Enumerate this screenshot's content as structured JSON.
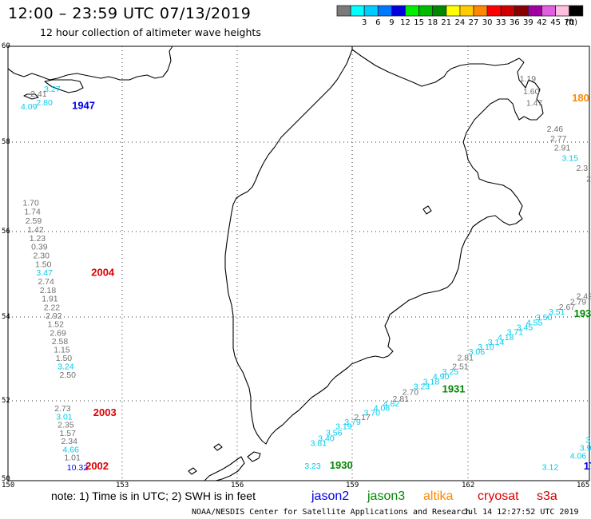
{
  "title": "12:00 – 23:59 UTC 07/13/2019",
  "subtitle": "12 hour collection of altimeter wave heights",
  "legend": {
    "unit": "(ft)",
    "cells": [
      {
        "label": "",
        "color": "#7a7a7a"
      },
      {
        "label": "3",
        "color": "#00ffff"
      },
      {
        "label": "6",
        "color": "#00ccff"
      },
      {
        "label": "9",
        "color": "#0077ff"
      },
      {
        "label": "12",
        "color": "#0000dd"
      },
      {
        "label": "15",
        "color": "#00ee00"
      },
      {
        "label": "18",
        "color": "#00bb00"
      },
      {
        "label": "21",
        "color": "#008800"
      },
      {
        "label": "24",
        "color": "#ffff00"
      },
      {
        "label": "27",
        "color": "#ffcc00"
      },
      {
        "label": "30",
        "color": "#ff8800"
      },
      {
        "label": "33",
        "color": "#ff0000"
      },
      {
        "label": "36",
        "color": "#cc0000"
      },
      {
        "label": "39",
        "color": "#880000"
      },
      {
        "label": "42",
        "color": "#a000a0"
      },
      {
        "label": "45",
        "color": "#e060e0"
      },
      {
        "label": "70",
        "color": "#ffc0e0"
      },
      {
        "label": "",
        "color": "#000000"
      }
    ]
  },
  "axes": {
    "lon_labels": [
      "150",
      "153",
      "156",
      "159",
      "162",
      "165"
    ],
    "lat_labels": [
      "60",
      "58",
      "56",
      "54",
      "52",
      "50"
    ]
  },
  "colors": {
    "gray": "#707070",
    "cyan": "#00ccee",
    "jason2": "#0000ee",
    "jason3": "#008800",
    "altika": "#ff8800",
    "cryosat": "#dd0000",
    "s3a": "#cc0000"
  },
  "observations": [
    {
      "lon": 150.93,
      "lat": 59.05,
      "value": "3.27",
      "color": "cyan"
    },
    {
      "lon": 150.58,
      "lat": 58.95,
      "value": "2.41",
      "color": "gray"
    },
    {
      "lon": 150.73,
      "lat": 58.77,
      "value": "2.80",
      "color": "cyan"
    },
    {
      "lon": 150.33,
      "lat": 58.68,
      "value": "4.09",
      "color": "cyan"
    },
    {
      "lon": 163.2,
      "lat": 59.27,
      "value": "1.19",
      "color": "gray"
    },
    {
      "lon": 163.29,
      "lat": 59.0,
      "value": "1.60",
      "color": "gray"
    },
    {
      "lon": 163.37,
      "lat": 58.76,
      "value": "1.47",
      "color": "gray"
    },
    {
      "lon": 163.9,
      "lat": 58.22,
      "value": "2.46",
      "color": "gray"
    },
    {
      "lon": 163.99,
      "lat": 58.02,
      "value": "2.77",
      "color": "gray"
    },
    {
      "lon": 164.09,
      "lat": 57.81,
      "value": "2.91",
      "color": "gray"
    },
    {
      "lon": 164.29,
      "lat": 57.58,
      "value": "3.15",
      "color": "cyan"
    },
    {
      "lon": 164.66,
      "lat": 57.36,
      "value": "2.3",
      "color": "gray"
    },
    {
      "lon": 164.92,
      "lat": 57.12,
      "value": "2.",
      "color": "gray"
    },
    {
      "lon": 150.38,
      "lat": 56.58,
      "value": "1.70",
      "color": "gray"
    },
    {
      "lon": 150.42,
      "lat": 56.38,
      "value": "1.74",
      "color": "gray"
    },
    {
      "lon": 150.45,
      "lat": 56.18,
      "value": "2.59",
      "color": "gray"
    },
    {
      "lon": 150.5,
      "lat": 55.98,
      "value": "1.42",
      "color": "gray"
    },
    {
      "lon": 150.55,
      "lat": 55.78,
      "value": "1.23",
      "color": "gray"
    },
    {
      "lon": 150.6,
      "lat": 55.58,
      "value": "0.39",
      "color": "gray"
    },
    {
      "lon": 150.65,
      "lat": 55.37,
      "value": "2.30",
      "color": "gray"
    },
    {
      "lon": 150.7,
      "lat": 55.17,
      "value": "1.50",
      "color": "gray"
    },
    {
      "lon": 150.73,
      "lat": 54.97,
      "value": "3.47",
      "color": "cyan"
    },
    {
      "lon": 150.77,
      "lat": 54.77,
      "value": "2.74",
      "color": "gray"
    },
    {
      "lon": 150.82,
      "lat": 54.56,
      "value": "2.18",
      "color": "gray"
    },
    {
      "lon": 150.87,
      "lat": 54.36,
      "value": "1.91",
      "color": "gray"
    },
    {
      "lon": 150.92,
      "lat": 54.16,
      "value": "2.22",
      "color": "gray"
    },
    {
      "lon": 150.97,
      "lat": 53.96,
      "value": "2.92",
      "color": "gray"
    },
    {
      "lon": 151.02,
      "lat": 53.76,
      "value": "1.52",
      "color": "gray"
    },
    {
      "lon": 151.08,
      "lat": 53.55,
      "value": "2.69",
      "color": "gray"
    },
    {
      "lon": 151.13,
      "lat": 53.35,
      "value": "2.58",
      "color": "gray"
    },
    {
      "lon": 151.18,
      "lat": 53.15,
      "value": "1.15",
      "color": "gray"
    },
    {
      "lon": 151.23,
      "lat": 52.95,
      "value": "1.50",
      "color": "gray"
    },
    {
      "lon": 151.28,
      "lat": 52.75,
      "value": "3.24",
      "color": "cyan"
    },
    {
      "lon": 151.33,
      "lat": 52.55,
      "value": "2.50",
      "color": "gray"
    },
    {
      "lon": 151.2,
      "lat": 51.74,
      "value": "2.73",
      "color": "gray"
    },
    {
      "lon": 151.24,
      "lat": 51.53,
      "value": "3.01",
      "color": "cyan"
    },
    {
      "lon": 151.28,
      "lat": 51.33,
      "value": "2.35",
      "color": "gray"
    },
    {
      "lon": 151.33,
      "lat": 51.12,
      "value": "1.57",
      "color": "gray"
    },
    {
      "lon": 151.37,
      "lat": 50.92,
      "value": "2.34",
      "color": "gray"
    },
    {
      "lon": 151.41,
      "lat": 50.71,
      "value": "4.66",
      "color": "cyan"
    },
    {
      "lon": 151.45,
      "lat": 50.51,
      "value": "1.01",
      "color": "gray"
    },
    {
      "lon": 151.52,
      "lat": 50.26,
      "value": "10.32",
      "color": "jason2"
    },
    {
      "lon": 164.66,
      "lat": 54.42,
      "value": "2.42",
      "color": "gray"
    },
    {
      "lon": 164.5,
      "lat": 54.29,
      "value": "2.79",
      "color": "gray"
    },
    {
      "lon": 164.21,
      "lat": 54.17,
      "value": "2.67",
      "color": "gray"
    },
    {
      "lon": 163.95,
      "lat": 54.06,
      "value": "3.51",
      "color": "cyan"
    },
    {
      "lon": 163.62,
      "lat": 53.92,
      "value": "3.50",
      "color": "cyan"
    },
    {
      "lon": 163.37,
      "lat": 53.8,
      "value": "4.55",
      "color": "cyan"
    },
    {
      "lon": 163.12,
      "lat": 53.69,
      "value": "3.45",
      "color": "cyan"
    },
    {
      "lon": 162.87,
      "lat": 53.57,
      "value": "3.71",
      "color": "cyan"
    },
    {
      "lon": 162.63,
      "lat": 53.45,
      "value": "4.18",
      "color": "cyan"
    },
    {
      "lon": 162.38,
      "lat": 53.33,
      "value": "3.14",
      "color": "cyan"
    },
    {
      "lon": 162.12,
      "lat": 53.22,
      "value": "3.10",
      "color": "cyan"
    },
    {
      "lon": 161.88,
      "lat": 53.1,
      "value": "3.06",
      "color": "cyan"
    },
    {
      "lon": 161.59,
      "lat": 52.96,
      "value": "2.81",
      "color": "gray"
    },
    {
      "lon": 161.46,
      "lat": 52.75,
      "value": "2.51",
      "color": "gray"
    },
    {
      "lon": 161.2,
      "lat": 52.63,
      "value": "3.25",
      "color": "cyan"
    },
    {
      "lon": 160.96,
      "lat": 52.51,
      "value": "4.90",
      "color": "cyan"
    },
    {
      "lon": 160.71,
      "lat": 52.39,
      "value": "3.18",
      "color": "cyan"
    },
    {
      "lon": 160.46,
      "lat": 52.28,
      "value": "3.23",
      "color": "cyan"
    },
    {
      "lon": 160.17,
      "lat": 52.14,
      "value": "2.70",
      "color": "gray"
    },
    {
      "lon": 159.92,
      "lat": 51.98,
      "value": "2.81",
      "color": "gray"
    },
    {
      "lon": 159.68,
      "lat": 51.86,
      "value": "4.82",
      "color": "cyan"
    },
    {
      "lon": 159.43,
      "lat": 51.75,
      "value": "4.08",
      "color": "cyan"
    },
    {
      "lon": 159.18,
      "lat": 51.63,
      "value": "3.70",
      "color": "cyan"
    },
    {
      "lon": 158.93,
      "lat": 51.52,
      "value": "2.17",
      "color": "gray"
    },
    {
      "lon": 158.68,
      "lat": 51.4,
      "value": "3.79",
      "color": "cyan"
    },
    {
      "lon": 158.45,
      "lat": 51.29,
      "value": "3.19",
      "color": "cyan"
    },
    {
      "lon": 158.2,
      "lat": 51.13,
      "value": "3.56",
      "color": "cyan"
    },
    {
      "lon": 158.0,
      "lat": 50.99,
      "value": "3.40",
      "color": "cyan"
    },
    {
      "lon": 157.8,
      "lat": 50.87,
      "value": "3.81",
      "color": "cyan"
    },
    {
      "lon": 157.65,
      "lat": 50.3,
      "value": "3.23",
      "color": "cyan"
    },
    {
      "lon": 163.78,
      "lat": 50.27,
      "value": "3.12",
      "color": "cyan"
    },
    {
      "lon": 164.5,
      "lat": 50.55,
      "value": "4.06",
      "color": "cyan"
    },
    {
      "lon": 164.75,
      "lat": 50.75,
      "value": "3.98",
      "color": "cyan"
    },
    {
      "lon": 164.9,
      "lat": 50.95,
      "value": "3.4",
      "color": "cyan"
    }
  ],
  "pass_labels": [
    {
      "lon": 151.65,
      "lat": 58.69,
      "text": "1947",
      "color": "jason2"
    },
    {
      "lon": 164.55,
      "lat": 58.85,
      "text": "180",
      "color": "altika"
    },
    {
      "lon": 152.15,
      "lat": 54.96,
      "text": "2004",
      "color": "cryosat"
    },
    {
      "lon": 152.2,
      "lat": 51.62,
      "text": "2003",
      "color": "cryosat"
    },
    {
      "lon": 152.0,
      "lat": 50.28,
      "text": "2002",
      "color": "cryosat"
    },
    {
      "lon": 164.6,
      "lat": 54.0,
      "text": "193",
      "color": "jason3"
    },
    {
      "lon": 161.2,
      "lat": 52.2,
      "text": "1931",
      "color": "jason3"
    },
    {
      "lon": 158.3,
      "lat": 50.3,
      "text": "1930",
      "color": "jason3"
    },
    {
      "lon": 164.85,
      "lat": 50.28,
      "text": "17",
      "color": "jason2"
    }
  ],
  "note": {
    "text": "note:  1) Time is in UTC;  2) SWH is in feet",
    "satellites": [
      {
        "name": "jason2",
        "color": "jason2"
      },
      {
        "name": "jason3",
        "color": "jason3"
      },
      {
        "name": "altika",
        "color": "altika"
      },
      {
        "name": "cryosat",
        "color": "cryosat"
      },
      {
        "name": "s3a",
        "color": "s3a"
      }
    ]
  },
  "footer": {
    "center": "NOAA/NESDIS Center for Satellite Applications and Research",
    "timestamp": "Jul 14 12:27:52 UTC 2019"
  }
}
